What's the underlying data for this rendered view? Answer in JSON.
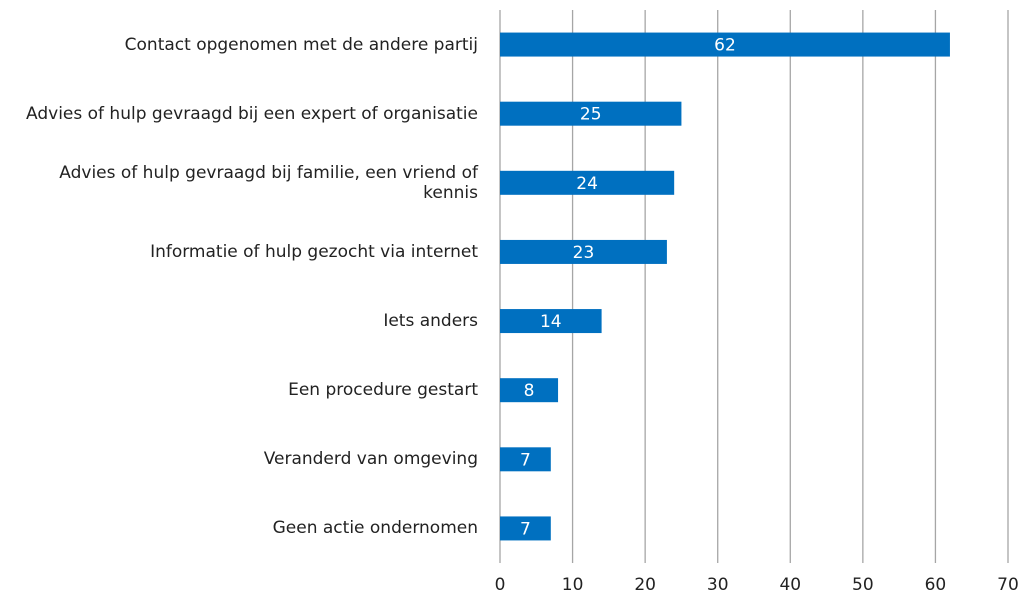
{
  "chart_data": {
    "type": "bar",
    "orientation": "horizontal",
    "categories": [
      "Contact opgenomen met de andere partij",
      "Advies of hulp gevraagd bij een expert of organisatie",
      "Advies of hulp gevraagd bij familie, een vriend of kennis",
      "Informatie of hulp gezocht via internet",
      "Iets anders",
      "Een procedure gestart",
      "Veranderd van omgeving",
      "Geen actie ondernomen"
    ],
    "values": [
      62,
      25,
      24,
      23,
      14,
      8,
      7,
      7
    ],
    "color": "#0070c0",
    "xlim": [
      0,
      70
    ],
    "xticks": [
      0,
      10,
      20,
      30,
      40,
      50,
      60,
      70
    ],
    "grid": true
  }
}
